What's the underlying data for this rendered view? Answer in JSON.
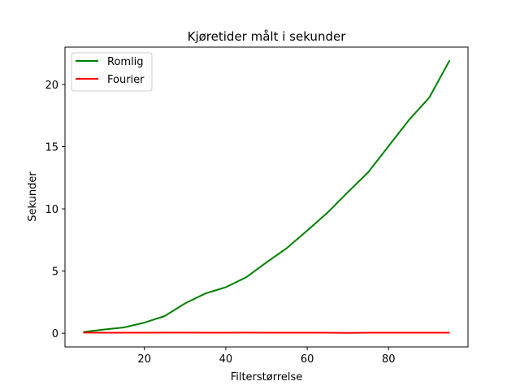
{
  "chart_data": {
    "type": "line",
    "title": "Kjøretider målt i sekunder",
    "xlabel": "Filterstørrelse",
    "ylabel": "Sekunder",
    "xlim": [
      0.5,
      99.5
    ],
    "ylim": [
      -1.1,
      23.0
    ],
    "xticks": [
      20,
      40,
      60,
      80
    ],
    "yticks": [
      0,
      5,
      10,
      15,
      20
    ],
    "grid": false,
    "legend_position": "top-left",
    "series": [
      {
        "name": "Romlig",
        "color": "#008000",
        "x": [
          5,
          10,
          15,
          20,
          25,
          30,
          35,
          40,
          45,
          50,
          55,
          60,
          65,
          70,
          75,
          80,
          85,
          90,
          95
        ],
        "y": [
          0.1,
          0.3,
          0.47,
          0.85,
          1.38,
          2.4,
          3.2,
          3.7,
          4.5,
          5.7,
          6.85,
          8.25,
          9.7,
          11.35,
          12.95,
          15.05,
          17.15,
          18.95,
          21.95
        ]
      },
      {
        "name": "Fourier",
        "color": "#ff0000",
        "x": [
          5,
          10,
          15,
          20,
          25,
          30,
          35,
          40,
          45,
          50,
          55,
          60,
          65,
          70,
          75,
          80,
          85,
          90,
          95
        ],
        "y": [
          0.05,
          0.04,
          0.04,
          0.04,
          0.05,
          0.05,
          0.04,
          0.04,
          0.05,
          0.04,
          0.04,
          0.04,
          0.04,
          0.03,
          0.04,
          0.04,
          0.04,
          0.04,
          0.04
        ]
      }
    ]
  }
}
